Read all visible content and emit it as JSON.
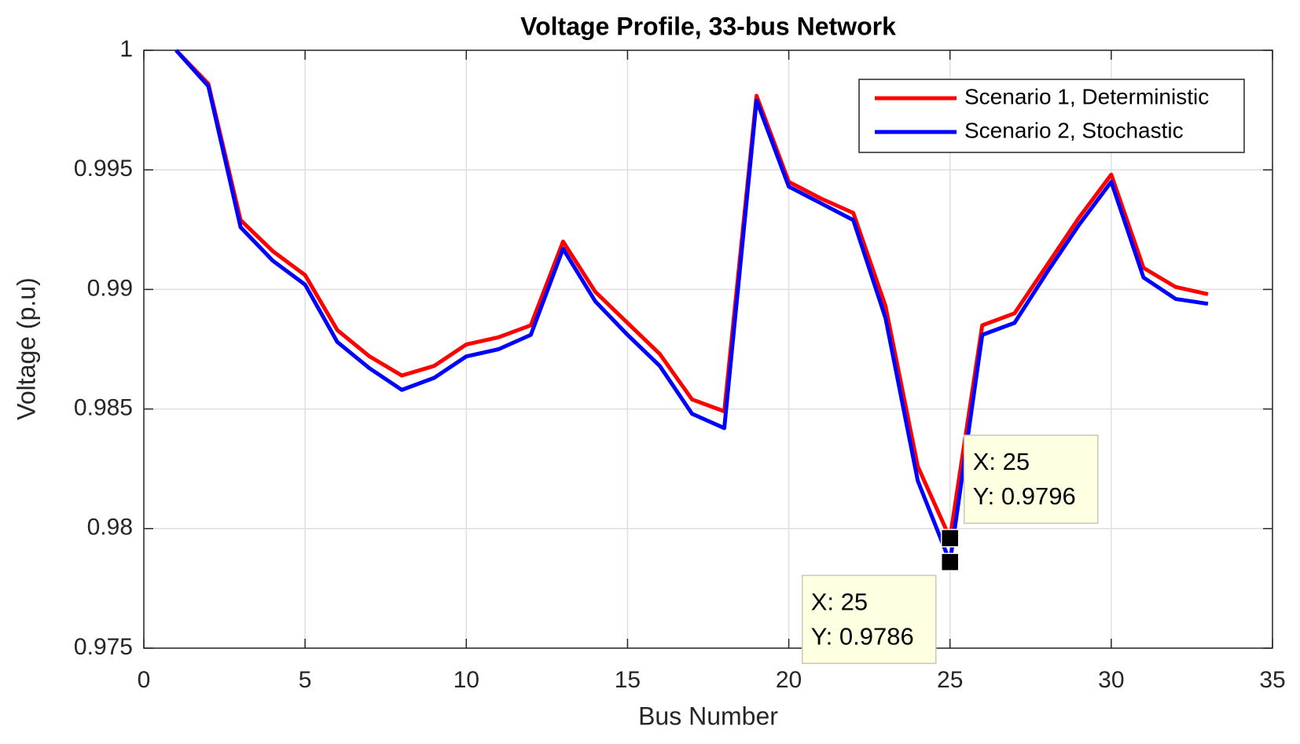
{
  "chart_data": {
    "type": "line",
    "title": "Voltage Profile, 33-bus Network",
    "xlabel": "Bus Number",
    "ylabel": "Voltage (p.u)",
    "x": [
      1,
      2,
      3,
      4,
      5,
      6,
      7,
      8,
      9,
      10,
      11,
      12,
      13,
      14,
      15,
      16,
      17,
      18,
      19,
      20,
      21,
      22,
      23,
      24,
      25,
      26,
      27,
      28,
      29,
      30,
      31,
      32,
      33
    ],
    "series": [
      {
        "name": "Scenario 1, Deterministic",
        "color": "#ff0000",
        "values": [
          1.0,
          0.9986,
          0.9929,
          0.9916,
          0.9906,
          0.9883,
          0.9872,
          0.9864,
          0.9868,
          0.9877,
          0.988,
          0.9885,
          0.992,
          0.9899,
          0.9886,
          0.9873,
          0.9854,
          0.9849,
          0.9981,
          0.9945,
          0.9938,
          0.9932,
          0.9893,
          0.9826,
          0.9796,
          0.9885,
          0.989,
          0.991,
          0.993,
          0.9948,
          0.9909,
          0.9901,
          0.9898
        ]
      },
      {
        "name": "Scenario 2, Stochastic",
        "color": "#0000ff",
        "values": [
          1.0,
          0.9985,
          0.9926,
          0.9912,
          0.9902,
          0.9878,
          0.9867,
          0.9858,
          0.9863,
          0.9872,
          0.9875,
          0.9881,
          0.9917,
          0.9895,
          0.9881,
          0.9868,
          0.9848,
          0.9842,
          0.9979,
          0.9943,
          0.9936,
          0.9929,
          0.9888,
          0.982,
          0.9786,
          0.9881,
          0.9886,
          0.9907,
          0.9927,
          0.9945,
          0.9905,
          0.9896,
          0.9894
        ]
      }
    ],
    "xlim": [
      0,
      35
    ],
    "xticks": [
      0,
      5,
      10,
      15,
      20,
      25,
      30,
      35
    ],
    "ylim": [
      0.975,
      1
    ],
    "yticks": [
      0.975,
      0.98,
      0.985,
      0.99,
      0.995,
      1
    ],
    "grid": true,
    "legend_position": "upper right",
    "annotations": [
      {
        "x": 25,
        "y": 0.9796,
        "lines": [
          "X: 25",
          "Y: 0.9796"
        ]
      },
      {
        "x": 25,
        "y": 0.9786,
        "lines": [
          "X: 25",
          "Y: 0.9786"
        ]
      }
    ]
  }
}
